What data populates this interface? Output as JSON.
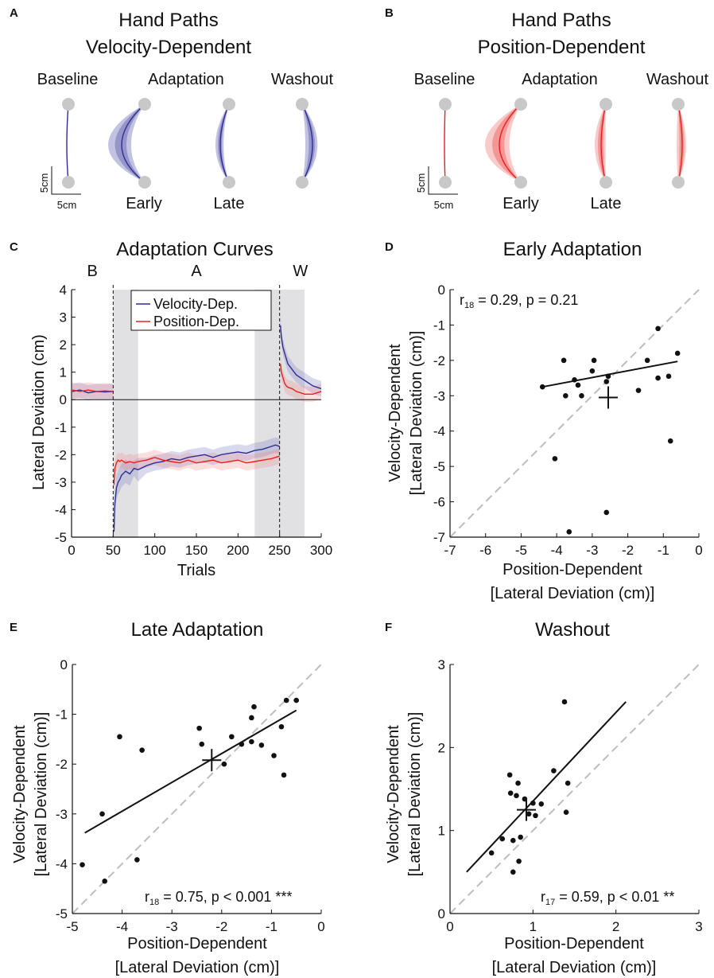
{
  "panel_letters": [
    "A",
    "B",
    "C",
    "D",
    "E",
    "F"
  ],
  "colors": {
    "velocity": "#2e2e92",
    "velocity_shade": "#7878c0",
    "position": "#e8201e",
    "position_shade": "#f08a8a",
    "target": "#c8c8c8",
    "epoch_shade": "#e1e1e4",
    "identity_line": "#bdbdbd"
  },
  "panel_a": {
    "title_line1": "Hand Paths",
    "title_line2": "Velocity-Dependent",
    "phase_labels": [
      "Baseline",
      "Adaptation",
      "Washout"
    ],
    "sub_labels": [
      "Early",
      "Late"
    ],
    "scale_v": "5cm",
    "scale_h": "5cm"
  },
  "panel_b": {
    "title_line1": "Hand Paths",
    "title_line2": "Position-Dependent",
    "phase_labels": [
      "Baseline",
      "Adaptation",
      "Washout"
    ],
    "sub_labels": [
      "Early",
      "Late"
    ],
    "scale_v": "5cm",
    "scale_h": "5cm"
  },
  "chart_data": [
    {
      "panel": "C",
      "type": "line",
      "title": "Adaptation Curves",
      "xlabel": "Trials",
      "ylabel": "Lateral Deviation (cm)",
      "xlim": [
        0,
        300
      ],
      "ylim": [
        -5,
        4
      ],
      "xticks": [
        0,
        50,
        100,
        150,
        200,
        250,
        300
      ],
      "yticks": [
        -5,
        -4,
        -3,
        -2,
        -1,
        0,
        1,
        2,
        3,
        4
      ],
      "phase_labels": [
        {
          "label": "B",
          "x": 25
        },
        {
          "label": "A",
          "x": 150
        },
        {
          "label": "W",
          "x": 275
        }
      ],
      "phase_boundaries": [
        50,
        250
      ],
      "shaded_epochs": [
        [
          50,
          80
        ],
        [
          220,
          250
        ],
        [
          250,
          280
        ]
      ],
      "legend_position": "top-center",
      "series": [
        {
          "name": "Velocity-Dep.",
          "segments": [
            {
              "x": [
                1,
                10,
                20,
                30,
                40,
                50
              ],
              "y": [
                0.3,
                0.35,
                0.25,
                0.3,
                0.28,
                0.3
              ]
            },
            {
              "x": [
                51,
                52,
                54,
                56,
                58,
                60,
                65,
                70,
                75,
                80,
                90,
                100,
                110,
                120,
                130,
                140,
                150,
                160,
                170,
                180,
                190,
                200,
                210,
                220,
                230,
                240,
                245,
                250
              ],
              "y": [
                -4.8,
                -3.8,
                -3.2,
                -3.0,
                -2.9,
                -2.75,
                -2.6,
                -2.7,
                -2.5,
                -2.55,
                -2.4,
                -2.3,
                -2.25,
                -2.15,
                -2.2,
                -2.1,
                -2.05,
                -2.0,
                -2.1,
                -2.0,
                -1.95,
                -1.9,
                -1.95,
                -1.85,
                -1.8,
                -1.7,
                -1.65,
                -1.7
              ]
            },
            {
              "x": [
                251,
                252,
                254,
                256,
                258,
                260,
                265,
                270,
                275,
                280,
                290,
                300
              ],
              "y": [
                2.7,
                2.3,
                1.9,
                1.7,
                1.5,
                1.3,
                1.1,
                0.9,
                0.8,
                0.7,
                0.5,
                0.4
              ]
            }
          ]
        },
        {
          "name": "Position-Dep.",
          "segments": [
            {
              "x": [
                1,
                10,
                20,
                30,
                40,
                50
              ],
              "y": [
                0.35,
                0.3,
                0.35,
                0.3,
                0.32,
                0.3
              ]
            },
            {
              "x": [
                51,
                52,
                54,
                56,
                58,
                60,
                65,
                70,
                75,
                80,
                90,
                100,
                110,
                120,
                130,
                140,
                150,
                160,
                170,
                180,
                190,
                200,
                210,
                220,
                230,
                240,
                245,
                250
              ],
              "y": [
                -3.1,
                -2.5,
                -2.3,
                -2.2,
                -2.25,
                -2.2,
                -2.3,
                -2.25,
                -2.3,
                -2.25,
                -2.2,
                -2.1,
                -2.2,
                -2.25,
                -2.3,
                -2.2,
                -2.3,
                -2.25,
                -2.2,
                -2.3,
                -2.25,
                -2.2,
                -2.3,
                -2.25,
                -2.2,
                -2.15,
                -2.1,
                -2.05
              ]
            },
            {
              "x": [
                251,
                252,
                254,
                256,
                258,
                260,
                265,
                270,
                275,
                280,
                290,
                300
              ],
              "y": [
                1.3,
                1.0,
                0.8,
                0.6,
                0.5,
                0.45,
                0.4,
                0.3,
                0.25,
                0.2,
                0.2,
                0.3
              ]
            }
          ]
        }
      ]
    },
    {
      "panel": "D",
      "type": "scatter",
      "title": "Early Adaptation",
      "xlabel_line1": "Position-Dependent",
      "xlabel_line2": "[Lateral Deviation (cm)]",
      "ylabel_line1": "Velocity-Dependent",
      "ylabel_line2": "[Lateral Deviation (cm)]",
      "xlim": [
        -7,
        0
      ],
      "ylim": [
        -7,
        0
      ],
      "xticks": [
        -7,
        -6,
        -5,
        -4,
        -3,
        -2,
        -1,
        0
      ],
      "yticks": [
        -7,
        -6,
        -5,
        -4,
        -3,
        -2,
        -1,
        0
      ],
      "stat_prefix": "r",
      "stat_sub": "18",
      "stat_rest": " = 0.29, p = 0.21",
      "stat_position": "top-left",
      "fit_line": [
        [
          -4.4,
          -2.75
        ],
        [
          -0.6,
          -2.03
        ]
      ],
      "mean_cross": {
        "x": -2.55,
        "y": -3.05
      },
      "points": [
        {
          "x": -4.4,
          "y": -2.75
        },
        {
          "x": -3.8,
          "y": -2.0
        },
        {
          "x": -3.75,
          "y": -3.0
        },
        {
          "x": -3.5,
          "y": -2.55
        },
        {
          "x": -3.4,
          "y": -2.7
        },
        {
          "x": -3.3,
          "y": -3.0
        },
        {
          "x": -3.0,
          "y": -2.3
        },
        {
          "x": -2.95,
          "y": -2.0
        },
        {
          "x": -2.6,
          "y": -2.6
        },
        {
          "x": -2.55,
          "y": -2.45
        },
        {
          "x": -4.05,
          "y": -4.78
        },
        {
          "x": -3.65,
          "y": -6.85
        },
        {
          "x": -2.6,
          "y": -6.3
        },
        {
          "x": -1.7,
          "y": -2.85
        },
        {
          "x": -1.45,
          "y": -2.0
        },
        {
          "x": -1.15,
          "y": -2.5
        },
        {
          "x": -1.15,
          "y": -1.1
        },
        {
          "x": -0.85,
          "y": -2.45
        },
        {
          "x": -0.8,
          "y": -4.28
        },
        {
          "x": -0.6,
          "y": -1.8
        }
      ]
    },
    {
      "panel": "E",
      "type": "scatter",
      "title": "Late Adaptation",
      "xlabel_line1": "Position-Dependent",
      "xlabel_line2": "[Lateral Deviation (cm)]",
      "ylabel_line1": "Velocity-Dependent",
      "ylabel_line2": "[Lateral Deviation (cm)]",
      "xlim": [
        -5,
        0
      ],
      "ylim": [
        -5,
        0
      ],
      "xticks": [
        -5,
        -4,
        -3,
        -2,
        -1,
        0
      ],
      "yticks": [
        -5,
        -4,
        -3,
        -2,
        -1,
        0
      ],
      "stat_prefix": "r",
      "stat_sub": "18",
      "stat_rest": " = 0.75, p < 0.001 ***",
      "stat_position": "bottom-right",
      "fit_line": [
        [
          -4.75,
          -3.38
        ],
        [
          -0.5,
          -0.92
        ]
      ],
      "mean_cross": {
        "x": -2.2,
        "y": -1.92
      },
      "points": [
        {
          "x": -4.8,
          "y": -4.02
        },
        {
          "x": -4.4,
          "y": -3.0
        },
        {
          "x": -4.35,
          "y": -4.35
        },
        {
          "x": -4.05,
          "y": -1.45
        },
        {
          "x": -3.7,
          "y": -3.92
        },
        {
          "x": -3.6,
          "y": -1.72
        },
        {
          "x": -2.45,
          "y": -1.28
        },
        {
          "x": -2.4,
          "y": -1.6
        },
        {
          "x": -1.95,
          "y": -2.0
        },
        {
          "x": -1.8,
          "y": -1.45
        },
        {
          "x": -1.6,
          "y": -1.6
        },
        {
          "x": -1.4,
          "y": -1.07
        },
        {
          "x": -1.35,
          "y": -0.85
        },
        {
          "x": -1.4,
          "y": -1.55
        },
        {
          "x": -1.2,
          "y": -1.62
        },
        {
          "x": -0.95,
          "y": -1.83
        },
        {
          "x": -0.8,
          "y": -1.25
        },
        {
          "x": -0.75,
          "y": -2.22
        },
        {
          "x": -0.7,
          "y": -0.72
        },
        {
          "x": -0.5,
          "y": -0.72
        }
      ]
    },
    {
      "panel": "F",
      "type": "scatter",
      "title": "Washout",
      "xlabel_line1": "Position-Dependent",
      "xlabel_line2": "[Lateral Deviation (cm)]",
      "ylabel_line1": "Velocity-Dependent",
      "ylabel_line2": "[Lateral Deviation (cm)]",
      "xlim": [
        0,
        3
      ],
      "ylim": [
        0,
        3
      ],
      "xticks": [
        0,
        1,
        2,
        3
      ],
      "yticks": [
        0,
        1,
        2,
        3
      ],
      "stat_prefix": "r",
      "stat_sub": "17",
      "stat_rest": " = 0.59, p < 0.01 **",
      "stat_position": "bottom-right",
      "fit_line": [
        [
          0.2,
          0.5
        ],
        [
          2.12,
          2.55
        ]
      ],
      "mean_cross": {
        "x": 0.92,
        "y": 1.25
      },
      "points": [
        {
          "x": 0.5,
          "y": 0.73
        },
        {
          "x": 0.63,
          "y": 0.9
        },
        {
          "x": 0.72,
          "y": 1.67
        },
        {
          "x": 0.73,
          "y": 1.45
        },
        {
          "x": 0.76,
          "y": 0.88
        },
        {
          "x": 0.76,
          "y": 0.5
        },
        {
          "x": 0.8,
          "y": 1.42
        },
        {
          "x": 0.82,
          "y": 1.57
        },
        {
          "x": 0.83,
          "y": 0.63
        },
        {
          "x": 0.85,
          "y": 0.92
        },
        {
          "x": 0.9,
          "y": 1.38
        },
        {
          "x": 0.95,
          "y": 1.2
        },
        {
          "x": 1.0,
          "y": 1.33
        },
        {
          "x": 1.03,
          "y": 1.18
        },
        {
          "x": 1.1,
          "y": 1.32
        },
        {
          "x": 1.25,
          "y": 1.72
        },
        {
          "x": 1.38,
          "y": 2.55
        },
        {
          "x": 1.4,
          "y": 1.22
        },
        {
          "x": 1.42,
          "y": 1.57
        }
      ]
    }
  ]
}
